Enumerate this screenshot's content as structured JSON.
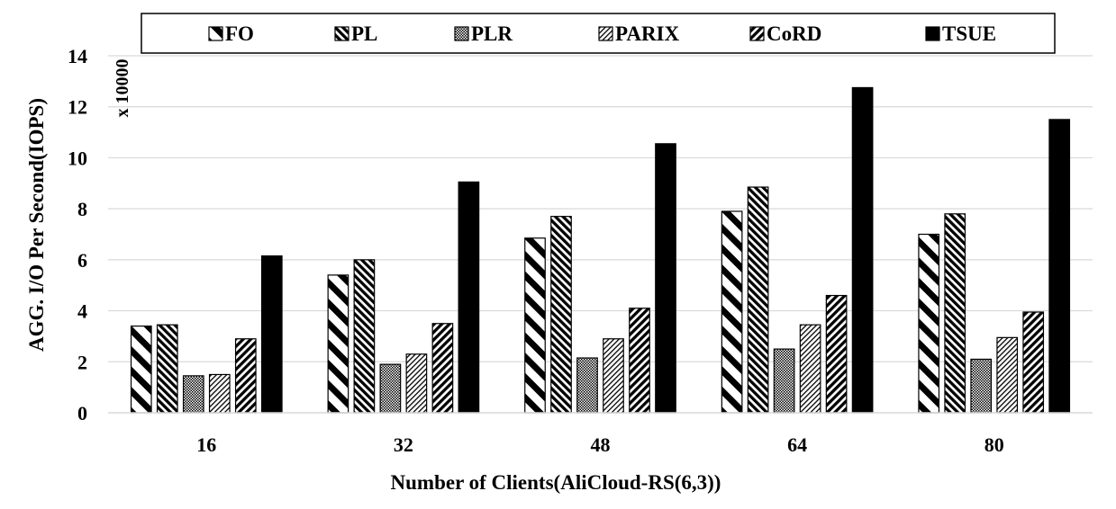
{
  "chart_data": {
    "type": "bar",
    "xlabel": "Number of Clients(AliCloud-RS(6,3))",
    "ylabel": "AGG. I/O Per Second(IOPS)",
    "y_multiplier": "x 10000",
    "ylim": [
      0,
      14
    ],
    "yticks": [
      "0",
      "2",
      "4",
      "6",
      "8",
      "10",
      "12",
      "14"
    ],
    "grid": true,
    "legend_position": "top",
    "categories": [
      "16",
      "32",
      "48",
      "64",
      "80"
    ],
    "series": [
      {
        "name": "FO",
        "pattern": "wide-backslash",
        "values": [
          3.4,
          5.4,
          6.85,
          7.9,
          7.0
        ]
      },
      {
        "name": "PL",
        "pattern": "dense-backslash",
        "values": [
          3.45,
          6.0,
          7.7,
          8.85,
          7.8
        ]
      },
      {
        "name": "PLR",
        "pattern": "fine-dots",
        "values": [
          1.45,
          1.9,
          2.15,
          2.5,
          2.1
        ]
      },
      {
        "name": "PARIX",
        "pattern": "fine-slash",
        "values": [
          1.5,
          2.3,
          2.9,
          3.45,
          2.95
        ]
      },
      {
        "name": "CoRD",
        "pattern": "dense-slash",
        "values": [
          2.9,
          3.5,
          4.1,
          4.6,
          3.95
        ]
      },
      {
        "name": "TSUE",
        "pattern": "solid",
        "values": [
          6.15,
          9.05,
          10.55,
          12.75,
          11.5
        ]
      }
    ]
  }
}
